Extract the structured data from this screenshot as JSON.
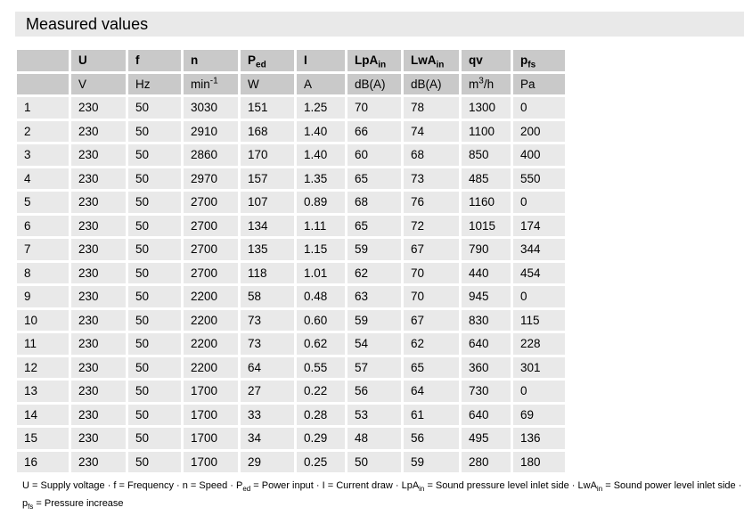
{
  "title": "Measured values",
  "table": {
    "columns": [
      {
        "label": "",
        "unit": ""
      },
      {
        "label": "U",
        "unit": "V"
      },
      {
        "label": "f",
        "unit": "Hz"
      },
      {
        "label": "n",
        "unit": "min",
        "unit_sup": "-1"
      },
      {
        "label": "P",
        "label_sub": "ed",
        "unit": "W"
      },
      {
        "label": "I",
        "unit": "A"
      },
      {
        "label": "LpA",
        "label_sub": "in",
        "unit": "dB(A)"
      },
      {
        "label": "LwA",
        "label_sub": "in",
        "unit": "dB(A)"
      },
      {
        "label": "qv",
        "unit": "m",
        "unit_sup": "3",
        "unit_post": "/h"
      },
      {
        "label": "p",
        "label_sub": "fs",
        "unit": "Pa"
      }
    ],
    "rows": [
      [
        "1",
        "230",
        "50",
        "3030",
        "151",
        "1.25",
        "70",
        "78",
        "1300",
        "0"
      ],
      [
        "2",
        "230",
        "50",
        "2910",
        "168",
        "1.40",
        "66",
        "74",
        "1100",
        "200"
      ],
      [
        "3",
        "230",
        "50",
        "2860",
        "170",
        "1.40",
        "60",
        "68",
        "850",
        "400"
      ],
      [
        "4",
        "230",
        "50",
        "2970",
        "157",
        "1.35",
        "65",
        "73",
        "485",
        "550"
      ],
      [
        "5",
        "230",
        "50",
        "2700",
        "107",
        "0.89",
        "68",
        "76",
        "1160",
        "0"
      ],
      [
        "6",
        "230",
        "50",
        "2700",
        "134",
        "1.11",
        "65",
        "72",
        "1015",
        "174"
      ],
      [
        "7",
        "230",
        "50",
        "2700",
        "135",
        "1.15",
        "59",
        "67",
        "790",
        "344"
      ],
      [
        "8",
        "230",
        "50",
        "2700",
        "118",
        "1.01",
        "62",
        "70",
        "440",
        "454"
      ],
      [
        "9",
        "230",
        "50",
        "2200",
        "58",
        "0.48",
        "63",
        "70",
        "945",
        "0"
      ],
      [
        "10",
        "230",
        "50",
        "2200",
        "73",
        "0.60",
        "59",
        "67",
        "830",
        "115"
      ],
      [
        "11",
        "230",
        "50",
        "2200",
        "73",
        "0.62",
        "54",
        "62",
        "640",
        "228"
      ],
      [
        "12",
        "230",
        "50",
        "2200",
        "64",
        "0.55",
        "57",
        "65",
        "360",
        "301"
      ],
      [
        "13",
        "230",
        "50",
        "1700",
        "27",
        "0.22",
        "56",
        "64",
        "730",
        "0"
      ],
      [
        "14",
        "230",
        "50",
        "1700",
        "33",
        "0.28",
        "53",
        "61",
        "640",
        "69"
      ],
      [
        "15",
        "230",
        "50",
        "1700",
        "34",
        "0.29",
        "48",
        "56",
        "495",
        "136"
      ],
      [
        "16",
        "230",
        "50",
        "1700",
        "29",
        "0.25",
        "50",
        "59",
        "280",
        "180"
      ]
    ]
  },
  "footnote": {
    "lines": [
      [
        {
          "t": "U = Supply voltage · f = Frequency · n = Speed · P"
        },
        {
          "sub": "ed"
        },
        {
          "t": " = Power input · I = Current draw · LpA"
        },
        {
          "sub": "in"
        },
        {
          "t": " = Sound pressure level inlet side · LwA"
        },
        {
          "sub": "in"
        },
        {
          "t": " = Sound power level inlet side · qv = Air flow"
        }
      ],
      [
        {
          "t": "p"
        },
        {
          "sub": "fs"
        },
        {
          "t": " = Pressure increase"
        }
      ]
    ]
  },
  "colors": {
    "title_bar_bg": "#e9e9e9",
    "header_cell_bg": "#c9c9c9",
    "data_cell_bg": "#e9e9e9",
    "text": "#000000",
    "page_bg": "#ffffff"
  }
}
